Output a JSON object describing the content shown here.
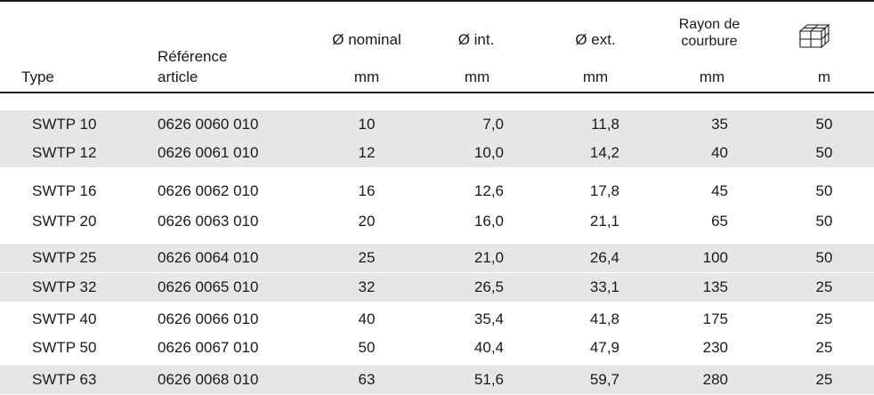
{
  "table": {
    "headers": {
      "type": "Type",
      "reference_line1": "Référence",
      "reference_line2": "article",
      "nominal": "Ø nominal",
      "internal": "Ø int.",
      "external": "Ø ext.",
      "radius_line1": "Rayon de",
      "radius_line2": "courbure",
      "icon": "package-icon"
    },
    "units": {
      "nominal": "mm",
      "internal": "mm",
      "external": "mm",
      "radius": "mm",
      "packaging": "m"
    },
    "rows": [
      {
        "type": "SWTP 10",
        "reference": "0626 0060 010",
        "nominal": "10",
        "internal": "7,0",
        "external": "11,8",
        "radius": "35",
        "packaging": "50"
      },
      {
        "type": "SWTP 12",
        "reference": "0626 0061 010",
        "nominal": "12",
        "internal": "10,0",
        "external": "14,2",
        "radius": "40",
        "packaging": "50"
      },
      {
        "type": "SWTP 16",
        "reference": "0626 0062 010",
        "nominal": "16",
        "internal": "12,6",
        "external": "17,8",
        "radius": "45",
        "packaging": "50"
      },
      {
        "type": "SWTP 20",
        "reference": "0626 0063 010",
        "nominal": "20",
        "internal": "16,0",
        "external": "21,1",
        "radius": "65",
        "packaging": "50"
      },
      {
        "type": "SWTP 25",
        "reference": "0626 0064 010",
        "nominal": "25",
        "internal": "21,0",
        "external": "26,4",
        "radius": "100",
        "packaging": "50"
      },
      {
        "type": "SWTP 32",
        "reference": "0626 0065 010",
        "nominal": "32",
        "internal": "26,5",
        "external": "33,1",
        "radius": "135",
        "packaging": "25"
      },
      {
        "type": "SWTP 40",
        "reference": "0626 0066 010",
        "nominal": "40",
        "internal": "35,4",
        "external": "41,8",
        "radius": "175",
        "packaging": "25"
      },
      {
        "type": "SWTP 50",
        "reference": "0626 0067 010",
        "nominal": "50",
        "internal": "40,4",
        "external": "47,9",
        "radius": "230",
        "packaging": "25"
      },
      {
        "type": "SWTP 63",
        "reference": "0626 0068 010",
        "nominal": "63",
        "internal": "51,6",
        "external": "59,7",
        "radius": "280",
        "packaging": "25"
      }
    ],
    "shading": {
      "shaded_color": "#e6e6e6",
      "plain_color": "#ffffff",
      "rule_color": "#1a1a1a"
    }
  }
}
